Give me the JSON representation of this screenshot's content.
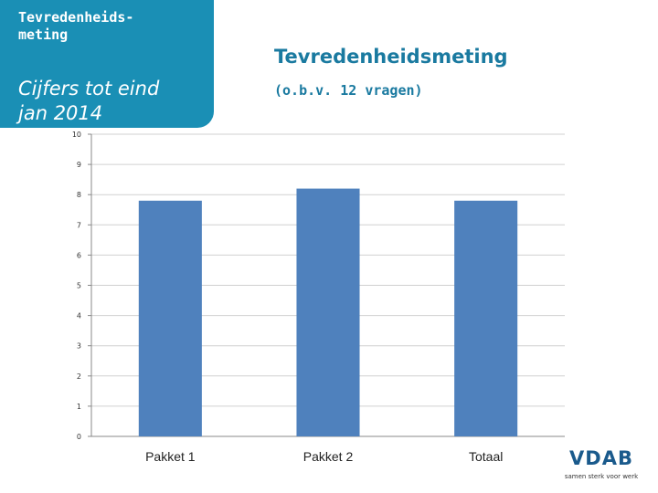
{
  "slide": {
    "side_title": "Tevredenheids-\nmeting",
    "side_subtitle": "Cijfers tot eind\njan 2014",
    "logo_text": "VDAB",
    "logo_tagline": "samen sterk voor werk"
  },
  "colors": {
    "panel": "#1a8fb5",
    "bar": "#4f81bd",
    "title": "#1a7aa0",
    "logo": "#1a5a8c"
  },
  "chart_data": {
    "type": "bar",
    "title": "Tevredenheidsmeting",
    "subtitle": "(o.b.v. 12 vragen)",
    "categories": [
      "Pakket 1",
      "Pakket 2",
      "Totaal"
    ],
    "values": [
      7.8,
      8.2,
      7.8
    ],
    "ylim": [
      0,
      10
    ],
    "yticks": [
      0,
      1,
      2,
      3,
      4,
      5,
      6,
      7,
      8,
      9,
      10
    ],
    "grid": true,
    "xlabel": "",
    "ylabel": ""
  }
}
